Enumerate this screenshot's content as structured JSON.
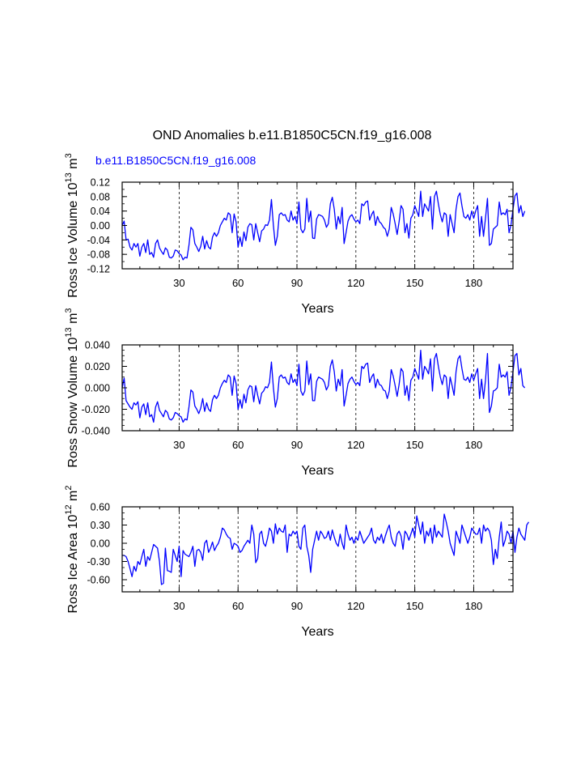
{
  "title": "OND Anomalies b.e11.B1850C5CN.f19_g16.008",
  "case_label": "b.e11.B1850C5CN.f19_g16.008",
  "colors": {
    "line": "#0000ff",
    "case_label": "#0000ff",
    "axes": "#000000",
    "ref": "#000000"
  },
  "chart_data": [
    {
      "type": "line",
      "ylabel_main": "Ross Ice Volume 10",
      "ylabel_exp": "13",
      "ylabel_unit": " m",
      "ylabel_unit_exp": "3",
      "xlabel": "Years",
      "xlim": [
        1,
        200
      ],
      "ylim": [
        -0.12,
        0.12
      ],
      "xticks": [
        30,
        60,
        90,
        120,
        150,
        180
      ],
      "yticks": [
        -0.12,
        -0.08,
        -0.04,
        0.0,
        0.04,
        0.08,
        0.12
      ],
      "ytick_labels": [
        "-0.12",
        "-0.08",
        "-0.04",
        "0.00",
        "0.04",
        "0.08",
        "0.12"
      ],
      "y_minor_step": 0.02,
      "series": [
        {
          "name": "b.e11.B1850C5CN.f19_g16.008",
          "values": [
            0.0,
            0.012,
            -0.04,
            -0.038,
            -0.06,
            -0.068,
            -0.05,
            -0.06,
            -0.05,
            -0.085,
            -0.06,
            -0.05,
            -0.075,
            -0.04,
            -0.08,
            -0.075,
            -0.088,
            -0.05,
            -0.04,
            -0.062,
            -0.072,
            -0.08,
            -0.062,
            -0.068,
            -0.088,
            -0.09,
            -0.085,
            -0.068,
            -0.07,
            -0.078,
            -0.082,
            -0.095,
            -0.088,
            -0.09,
            -0.055,
            -0.005,
            -0.012,
            -0.05,
            -0.06,
            -0.072,
            -0.058,
            -0.03,
            -0.065,
            -0.042,
            -0.06,
            -0.065,
            -0.032,
            -0.02,
            -0.03,
            -0.02,
            0.0,
            0.01,
            0.02,
            0.015,
            0.035,
            0.03,
            -0.02,
            0.032,
            0.01,
            -0.06,
            -0.032,
            -0.058,
            -0.018,
            -0.042,
            -0.005,
            0.005,
            0.002,
            -0.04,
            0.005,
            -0.02,
            -0.045,
            -0.015,
            -0.01,
            0.002,
            0.0,
            0.015,
            0.072,
            0.0,
            -0.055,
            -0.03,
            0.03,
            0.035,
            0.028,
            0.03,
            0.015,
            0.01,
            0.04,
            0.015,
            0.025,
            0.005,
            0.065,
            -0.01,
            -0.02,
            -0.01,
            0.075,
            0.01,
            0.04,
            -0.035,
            -0.036,
            0.018,
            0.03,
            0.028,
            0.025,
            0.015,
            -0.005,
            0.005,
            0.06,
            0.078,
            0.045,
            -0.01,
            0.025,
            0.005,
            0.05,
            -0.05,
            -0.02,
            0.012,
            0.025,
            0.03,
            0.018,
            0.01,
            0.015,
            0.005,
            0.06,
            0.055,
            0.065,
            0.068,
            0.015,
            0.03,
            0.04,
            0.0,
            0.025,
            0.01,
            0.005,
            -0.005,
            -0.01,
            -0.03,
            -0.01,
            0.05,
            0.032,
            0.005,
            -0.025,
            0.01,
            0.055,
            0.045,
            -0.02,
            0.005,
            -0.035,
            0.02,
            0.03,
            0.055,
            0.04,
            0.025,
            0.095,
            0.025,
            0.06,
            0.05,
            0.04,
            0.08,
            -0.01,
            0.08,
            0.095,
            0.06,
            0.03,
            0.01,
            0.035,
            0.03,
            -0.03,
            0.03,
            0.005,
            -0.02,
            0.045,
            0.08,
            0.09,
            0.055,
            0.025,
            0.02,
            0.03,
            0.015,
            0.04,
            0.02,
            0.04,
            0.055,
            -0.03,
            0.025,
            -0.03,
            0.02,
            0.075,
            -0.055,
            -0.05,
            -0.01,
            -0.005,
            0.0,
            0.065,
            0.03,
            0.035,
            0.03,
            0.045,
            -0.02,
            0.002,
            0.045,
            0.082,
            0.09,
            0.035,
            0.055,
            0.025,
            0.04
          ]
        }
      ]
    },
    {
      "type": "line",
      "ylabel_main": "Ross Snow Volume 10",
      "ylabel_exp": "13",
      "ylabel_unit": " m",
      "ylabel_unit_exp": "3",
      "xlabel": "Years",
      "xlim": [
        1,
        200
      ],
      "ylim": [
        -0.04,
        0.04
      ],
      "xticks": [
        30,
        60,
        90,
        120,
        150,
        180
      ],
      "yticks": [
        -0.04,
        -0.02,
        0.0,
        0.02,
        0.04
      ],
      "ytick_labels": [
        "-0.040",
        "-0.020",
        "0.000",
        "0.020",
        "0.040"
      ],
      "y_minor_step": 0.005,
      "series": [
        {
          "name": "b.e11.B1850C5CN.f19_g16.008",
          "values": [
            0.0,
            0.009,
            -0.012,
            -0.015,
            -0.018,
            -0.02,
            -0.014,
            -0.016,
            -0.013,
            -0.028,
            -0.018,
            -0.015,
            -0.025,
            -0.014,
            -0.027,
            -0.025,
            -0.032,
            -0.018,
            -0.013,
            -0.021,
            -0.024,
            -0.027,
            -0.021,
            -0.023,
            -0.029,
            -0.03,
            -0.028,
            -0.023,
            -0.024,
            -0.026,
            -0.027,
            -0.032,
            -0.029,
            -0.03,
            -0.018,
            -0.002,
            -0.004,
            -0.017,
            -0.02,
            -0.024,
            -0.019,
            -0.01,
            -0.022,
            -0.014,
            -0.02,
            -0.022,
            -0.011,
            -0.007,
            -0.01,
            -0.007,
            0.0,
            0.004,
            0.007,
            0.005,
            0.012,
            0.01,
            -0.007,
            0.011,
            0.004,
            -0.02,
            -0.011,
            -0.019,
            -0.006,
            -0.014,
            -0.002,
            0.002,
            0.001,
            -0.013,
            0.002,
            -0.007,
            -0.015,
            -0.005,
            -0.003,
            0.001,
            0.0,
            0.005,
            0.024,
            0.0,
            -0.018,
            -0.01,
            0.01,
            0.012,
            0.009,
            0.01,
            0.005,
            0.003,
            0.013,
            0.005,
            0.008,
            0.002,
            0.022,
            -0.003,
            -0.007,
            -0.003,
            0.025,
            0.003,
            0.013,
            -0.012,
            -0.012,
            0.006,
            0.01,
            0.009,
            0.008,
            0.005,
            -0.002,
            0.002,
            0.02,
            0.026,
            0.015,
            -0.003,
            0.008,
            0.002,
            0.017,
            -0.017,
            -0.007,
            0.004,
            0.008,
            0.01,
            0.006,
            0.003,
            0.005,
            0.002,
            0.02,
            0.018,
            0.022,
            0.023,
            0.005,
            0.01,
            0.013,
            0.0,
            0.008,
            0.003,
            0.002,
            -0.002,
            -0.003,
            -0.01,
            -0.003,
            0.017,
            0.011,
            0.002,
            -0.008,
            0.003,
            0.018,
            0.015,
            -0.007,
            0.002,
            -0.012,
            0.007,
            0.01,
            0.018,
            0.013,
            0.008,
            0.035,
            0.008,
            0.02,
            0.017,
            0.013,
            0.027,
            -0.003,
            0.027,
            0.032,
            0.02,
            0.01,
            0.003,
            0.012,
            0.01,
            -0.01,
            0.01,
            0.002,
            -0.007,
            0.015,
            0.027,
            0.03,
            0.018,
            0.008,
            0.007,
            0.01,
            0.005,
            0.013,
            0.007,
            0.013,
            0.018,
            -0.01,
            0.008,
            -0.01,
            0.007,
            0.032,
            -0.023,
            -0.017,
            -0.003,
            -0.002,
            0.0,
            0.022,
            0.01,
            0.012,
            0.01,
            0.015,
            -0.007,
            0.001,
            0.015,
            0.03,
            0.032,
            0.012,
            0.018,
            0.002,
            0.0
          ]
        }
      ]
    },
    {
      "type": "line",
      "ylabel_main": "Ross Ice Area 10",
      "ylabel_exp": "12",
      "ylabel_unit": " m",
      "ylabel_unit_exp": "2",
      "xlabel": "Years",
      "xlim": [
        1,
        200
      ],
      "ylim": [
        -0.8,
        0.6
      ],
      "xticks": [
        30,
        60,
        90,
        120,
        150,
        180
      ],
      "yticks": [
        -0.6,
        -0.3,
        0.0,
        0.3,
        0.6
      ],
      "ytick_labels": [
        "-0.60",
        "-0.30",
        "0.00",
        "0.30",
        "0.60"
      ],
      "y_minor_step": 0.1,
      "series": [
        {
          "name": "b.e11.B1850C5CN.f19_g16.008",
          "values": [
            -0.2,
            -0.2,
            -0.22,
            -0.3,
            -0.42,
            -0.55,
            -0.38,
            -0.46,
            -0.3,
            -0.35,
            -0.22,
            -0.1,
            -0.38,
            -0.22,
            -0.28,
            -0.15,
            -0.02,
            -0.05,
            -0.08,
            -0.3,
            -0.68,
            -0.66,
            -0.08,
            -0.45,
            -0.46,
            -0.48,
            -0.1,
            -0.2,
            -0.3,
            -0.05,
            -0.55,
            -0.12,
            -0.18,
            -0.2,
            -0.22,
            -0.15,
            -0.05,
            -0.38,
            -0.12,
            -0.1,
            -0.15,
            -0.28,
            0.0,
            0.05,
            -0.15,
            -0.08,
            0.02,
            -0.12,
            -0.05,
            0.0,
            0.1,
            0.25,
            0.22,
            0.15,
            0.1,
            0.08,
            -0.1,
            0.0,
            -0.02,
            -0.05,
            -0.15,
            -0.12,
            -0.05,
            0.0,
            0.05,
            0.0,
            0.3,
            0.15,
            -0.32,
            -0.25,
            0.15,
            0.2,
            0.0,
            -0.05,
            0.08,
            0.25,
            0.2,
            0.0,
            0.32,
            0.15,
            0.25,
            0.2,
            0.18,
            0.3,
            -0.15,
            0.15,
            0.12,
            0.2,
            0.15,
            0.2,
            -0.05,
            -0.1,
            0.25,
            0.3,
            -0.05,
            -0.2,
            -0.48,
            -0.1,
            0.05,
            0.2,
            0.05,
            0.2,
            0.15,
            0.08,
            0.1,
            0.2,
            0.05,
            0.22,
            0.1,
            0.0,
            -0.05,
            0.15,
            0.0,
            -0.1,
            0.3,
            0.15,
            0.05,
            0.1,
            0.0,
            0.1,
            0.05,
            0.2,
            0.1,
            0.0,
            0.05,
            0.1,
            0.15,
            0.25,
            0.05,
            0.0,
            0.1,
            0.05,
            0.15,
            0.0,
            0.12,
            0.22,
            0.3,
            0.1,
            0.0,
            -0.05,
            0.15,
            0.2,
            0.12,
            -0.1,
            0.2,
            0.15,
            0.05,
            0.15,
            0.25,
            0.1,
            0.45,
            0.3,
            0.15,
            0.35,
            0.0,
            0.2,
            0.12,
            0.25,
            0.0,
            0.3,
            0.1,
            0.2,
            0.15,
            0.1,
            0.48,
            0.35,
            0.2,
            0.0,
            -0.1,
            -0.2,
            0.2,
            0.1,
            0.0,
            0.3,
            0.2,
            0.1,
            0.0,
            0.1,
            0.25,
            0.2,
            0.15,
            0.15,
            0.25,
            0.0,
            0.3,
            0.2,
            0.25,
            0.2,
            0.05,
            -0.35,
            -0.1,
            -0.25,
            0.1,
            0.35,
            -0.05,
            0.05,
            0.2,
            0.15,
            0.0,
            0.2,
            -0.15,
            0.1,
            0.25,
            0.15,
            0.1,
            0.05,
            0.3,
            0.35
          ]
        }
      ]
    }
  ]
}
